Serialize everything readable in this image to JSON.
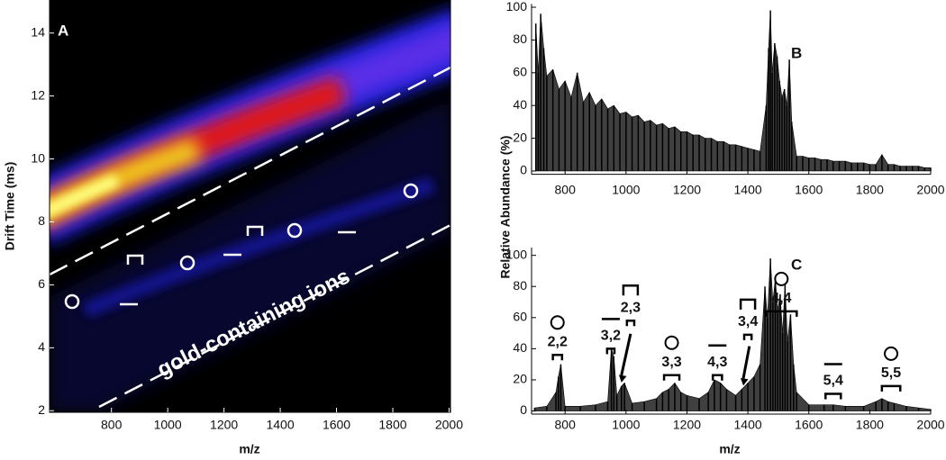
{
  "chart_data": [
    {
      "type": "heatmap",
      "title": "A",
      "xlabel": "m/z",
      "ylabel": "Drift Time (ms)",
      "annotation": "gold-containing ions",
      "xlim": [
        580,
        2005
      ],
      "xticks": [
        800,
        1000,
        1200,
        1400,
        1600,
        1800,
        2000
      ],
      "ylim": [
        1.95,
        15.05
      ],
      "yticks": [
        2,
        4,
        6,
        8,
        10,
        12,
        14
      ]
    },
    {
      "type": "spectrum",
      "title": "B",
      "color": "#000000",
      "xlim": [
        690,
        2000
      ],
      "xticks": [
        800,
        1000,
        1200,
        1400,
        1600,
        1800,
        2000
      ],
      "ylim": [
        -2,
        102
      ],
      "yticks": [
        0,
        20,
        40,
        60,
        80,
        100
      ],
      "x": [
        704,
        712,
        720,
        730,
        740,
        760,
        780,
        800,
        820,
        840,
        860,
        880,
        900,
        920,
        940,
        960,
        980,
        1000,
        1020,
        1040,
        1060,
        1080,
        1100,
        1120,
        1140,
        1160,
        1180,
        1200,
        1220,
        1240,
        1260,
        1280,
        1300,
        1320,
        1340,
        1360,
        1380,
        1400,
        1420,
        1440,
        1460,
        1468,
        1474,
        1480,
        1488,
        1496,
        1504,
        1512,
        1520,
        1528,
        1536,
        1544,
        1560,
        1580,
        1600,
        1620,
        1640,
        1660,
        1680,
        1700,
        1720,
        1740,
        1760,
        1780,
        1800,
        1820,
        1840,
        1860,
        1880,
        1900,
        1920,
        1940,
        1960,
        1980,
        2000
      ],
      "values": [
        90,
        60,
        96,
        75,
        58,
        62,
        50,
        55,
        45,
        60,
        42,
        48,
        40,
        44,
        38,
        40,
        35,
        36,
        33,
        34,
        30,
        31,
        28,
        29,
        26,
        27,
        24,
        24,
        22,
        22,
        20,
        20,
        18,
        18,
        16,
        16,
        15,
        14,
        13,
        12,
        40,
        75,
        98,
        60,
        78,
        70,
        55,
        45,
        50,
        40,
        68,
        30,
        9,
        9,
        8,
        8,
        7,
        7,
        6,
        6,
        6,
        5,
        5,
        5,
        4,
        4,
        10,
        4,
        4,
        3,
        3,
        3,
        3,
        2,
        2
      ]
    },
    {
      "type": "spectrum",
      "title": "C",
      "color": "#000000",
      "xlabel": "m/z",
      "ylabel": "Relative Abundance (%)",
      "annotations": [
        "2,2",
        "3,2",
        "2,3",
        "3,3",
        "4,3",
        "3,4",
        "4,4",
        "5,4",
        "5,5"
      ],
      "xlim": [
        690,
        2000
      ],
      "xticks": [
        800,
        1000,
        1200,
        1400,
        1600,
        1800,
        2000
      ],
      "ylim": [
        -2,
        105
      ],
      "yticks": [
        0,
        20,
        40,
        60,
        80,
        100
      ],
      "x": [
        700,
        740,
        770,
        778,
        786,
        800,
        850,
        900,
        940,
        952,
        960,
        970,
        985,
        995,
        1020,
        1060,
        1100,
        1120,
        1140,
        1160,
        1180,
        1200,
        1240,
        1270,
        1290,
        1310,
        1330,
        1360,
        1380,
        1400,
        1420,
        1440,
        1456,
        1464,
        1474,
        1482,
        1490,
        1498,
        1506,
        1514,
        1522,
        1530,
        1540,
        1550,
        1560,
        1600,
        1650,
        1680,
        1720,
        1780,
        1820,
        1840,
        1860,
        1880,
        1920,
        1960,
        2000
      ],
      "values": [
        2,
        3,
        12,
        22,
        30,
        3,
        3,
        4,
        6,
        40,
        35,
        10,
        16,
        18,
        5,
        6,
        8,
        12,
        14,
        18,
        12,
        10,
        8,
        12,
        20,
        18,
        14,
        10,
        14,
        18,
        22,
        30,
        80,
        60,
        98,
        70,
        85,
        65,
        75,
        50,
        82,
        45,
        62,
        30,
        12,
        4,
        4,
        4,
        3,
        3,
        6,
        8,
        6,
        5,
        3,
        2,
        1
      ]
    }
  ]
}
